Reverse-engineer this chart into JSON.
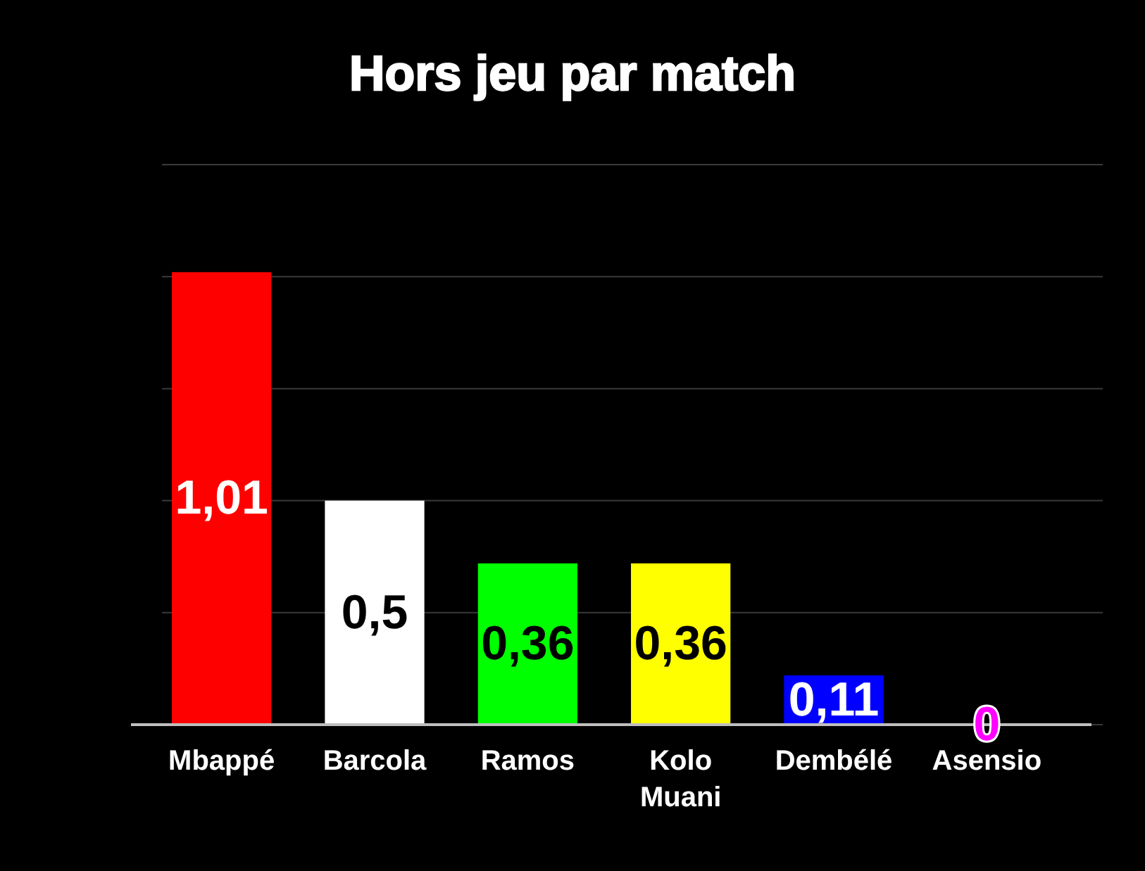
{
  "chart_data": {
    "type": "bar",
    "title": "Hors jeu par match",
    "categories": [
      "Mbappé",
      "Barcola",
      "Ramos",
      "Kolo Muani",
      "Dembélé",
      "Asensio"
    ],
    "values": [
      1.01,
      0.5,
      0.36,
      0.36,
      0.11,
      0
    ],
    "colors": [
      "#ff0000",
      "#ffffff",
      "#00ff00",
      "#ffff00",
      "#0000ff",
      "#ff00ff"
    ],
    "value_labels": [
      "1,01",
      "0,5",
      "0,36",
      "0,36",
      "0,11",
      "0"
    ],
    "ylim": [
      0,
      1.25
    ],
    "yticks": [
      {
        "value": 0,
        "label": null
      },
      {
        "value": 0.25,
        "label": null
      },
      {
        "value": 0.5,
        "label": null
      },
      {
        "value": 0.75,
        "label": null
      },
      {
        "value": 1,
        "label": null
      },
      {
        "value": 1.25,
        "label": null
      }
    ],
    "grid": "y",
    "tick_labels": "x"
  }
}
